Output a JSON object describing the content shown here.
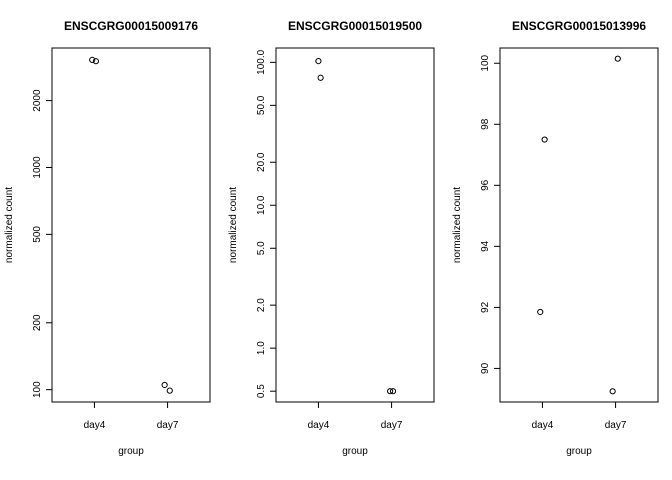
{
  "chart_data": [
    {
      "type": "scatter",
      "title": "ENSCGRG00015009176",
      "xlabel": "group",
      "ylabel": "normalized count",
      "categories": [
        "day4",
        "day7"
      ],
      "y_scale": "log",
      "ylim": [
        88,
        3450
      ],
      "yticks": [
        100,
        200,
        500,
        1000,
        2000
      ],
      "ytick_labels": [
        "100",
        "200",
        "500",
        "1000",
        "2000"
      ],
      "points": [
        {
          "x": "day4",
          "jitter": -0.03,
          "y": 3050
        },
        {
          "x": "day4",
          "jitter": 0.02,
          "y": 3010
        },
        {
          "x": "day7",
          "jitter": -0.04,
          "y": 105
        },
        {
          "x": "day7",
          "jitter": 0.03,
          "y": 99
        }
      ]
    },
    {
      "type": "scatter",
      "title": "ENSCGRG00015019500",
      "xlabel": "group",
      "ylabel": "normalized count",
      "categories": [
        "day4",
        "day7"
      ],
      "y_scale": "log",
      "ylim": [
        0.42,
        126
      ],
      "yticks": [
        0.5,
        1,
        2,
        5,
        10,
        20,
        50,
        100
      ],
      "ytick_labels": [
        "0.5",
        "1.0",
        "2.0",
        "5.0",
        "10.0",
        "20.0",
        "50.0",
        "100.0"
      ],
      "points": [
        {
          "x": "day4",
          "jitter": 0.0,
          "y": 102
        },
        {
          "x": "day4",
          "jitter": 0.03,
          "y": 78
        },
        {
          "x": "day7",
          "jitter": -0.02,
          "y": 0.5
        },
        {
          "x": "day7",
          "jitter": 0.02,
          "y": 0.5
        }
      ]
    },
    {
      "type": "scatter",
      "title": "ENSCGRG00015013996",
      "xlabel": "group",
      "ylabel": "normalized count",
      "categories": [
        "day4",
        "day7"
      ],
      "y_scale": "linear",
      "ylim": [
        88.9,
        100.5
      ],
      "yticks": [
        90,
        92,
        94,
        96,
        98,
        100
      ],
      "ytick_labels": [
        "90",
        "92",
        "94",
        "96",
        "98",
        "100"
      ],
      "points": [
        {
          "x": "day4",
          "jitter": 0.03,
          "y": 97.5
        },
        {
          "x": "day4",
          "jitter": -0.03,
          "y": 91.85
        },
        {
          "x": "day7",
          "jitter": 0.03,
          "y": 100.15
        },
        {
          "x": "day7",
          "jitter": -0.04,
          "y": 89.25
        }
      ]
    }
  ]
}
